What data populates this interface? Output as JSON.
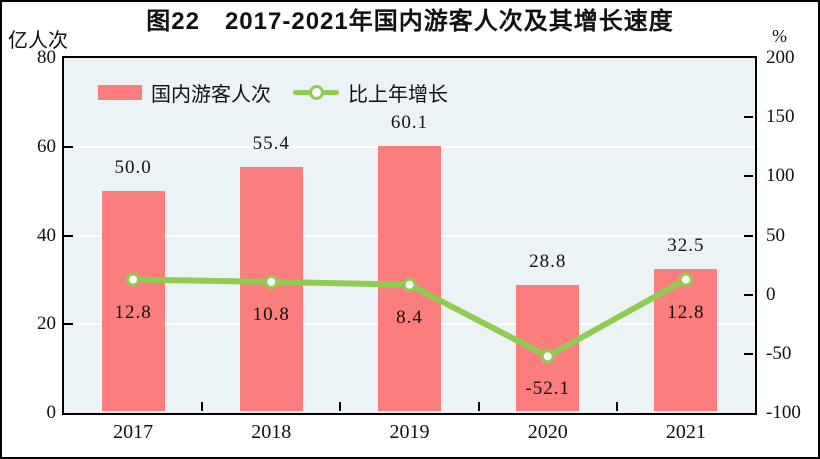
{
  "title": "图22　2017-2021年国内游客人次及其增长速度",
  "axes": {
    "left_unit": "亿人次",
    "right_unit": "%"
  },
  "legend": {
    "bar_label": "国内游客人次",
    "line_label": "比上年增长"
  },
  "colors": {
    "bar": "#fb7d7d",
    "line": "#8fcc4f",
    "marker_fill": "#ffffff",
    "plot_background": "#ecf3f7",
    "gridline": "#ffffff",
    "axis": "#000000",
    "text": "#111111"
  },
  "chart_data": {
    "type": "bar",
    "title": "图22　2017-2021年国内游客人次及其增长速度",
    "categories": [
      "2017",
      "2018",
      "2019",
      "2020",
      "2021"
    ],
    "series": [
      {
        "name": "国内游客人次",
        "type": "bar",
        "axis": "left",
        "unit": "亿人次",
        "values": [
          50.0,
          55.4,
          60.1,
          28.8,
          32.5
        ],
        "labels": [
          "50.0",
          "55.4",
          "60.1",
          "28.8",
          "32.5"
        ],
        "color": "#fb7d7d"
      },
      {
        "name": "比上年增长",
        "type": "line",
        "axis": "right",
        "unit": "%",
        "values": [
          12.8,
          10.8,
          8.4,
          -52.1,
          12.8
        ],
        "labels": [
          "12.8",
          "10.8",
          "8.4",
          "-52.1",
          "12.8"
        ],
        "color": "#8fcc4f"
      }
    ],
    "left_axis": {
      "label": "亿人次",
      "min": 0,
      "max": 80,
      "tick_step": 20,
      "ticks": [
        0,
        20,
        40,
        60,
        80
      ]
    },
    "right_axis": {
      "label": "%",
      "min": -100,
      "max": 200,
      "tick_step": 50,
      "ticks": [
        -100,
        -50,
        0,
        50,
        100,
        150,
        200
      ]
    },
    "gridlines": {
      "left_axis_values": [
        20,
        40,
        60
      ],
      "color": "#ffffff"
    },
    "grid": true,
    "legend_position": "top-left-inside",
    "plot_background": "#ecf3f7"
  }
}
